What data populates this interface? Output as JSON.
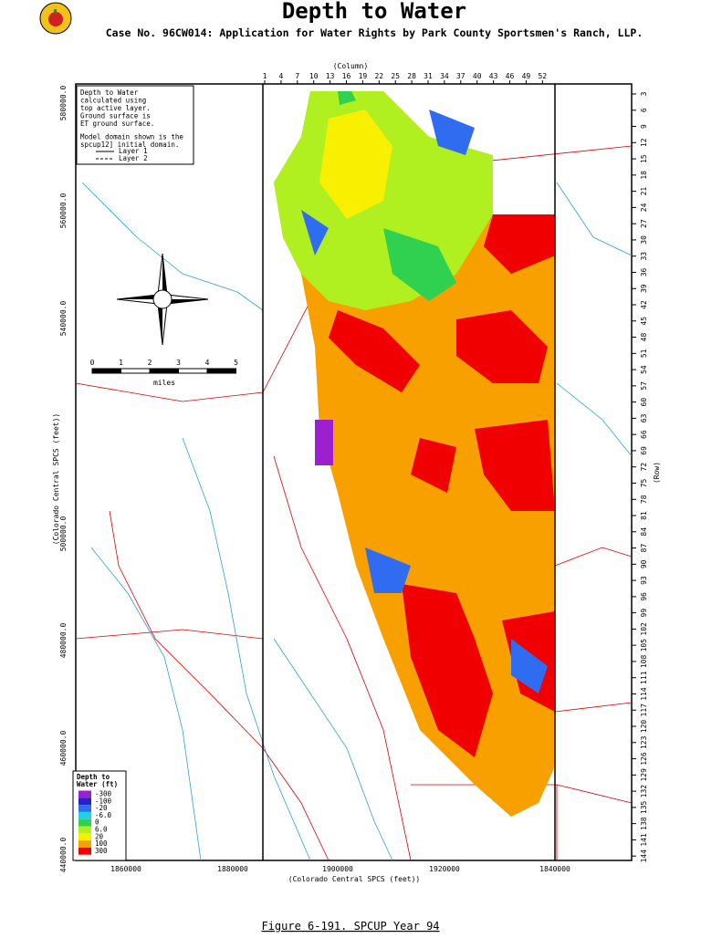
{
  "header": {
    "title": "Depth to Water",
    "subtitle": "Case No. 96CW014: Application for Water Rights by Park County Sportsmen's Ranch, LLP."
  },
  "top_axis": {
    "label": "(Column)",
    "ticks": [
      1,
      4,
      7,
      10,
      13,
      16,
      19,
      22,
      25,
      28,
      31,
      34,
      37,
      40,
      43,
      46,
      49,
      52
    ]
  },
  "right_axis": {
    "label": "(Row)",
    "ticks": [
      3,
      6,
      9,
      12,
      15,
      18,
      21,
      24,
      27,
      30,
      33,
      36,
      39,
      42,
      45,
      48,
      51,
      54,
      57,
      60,
      63,
      66,
      69,
      72,
      75,
      78,
      81,
      84,
      87,
      90,
      93,
      96,
      99,
      102,
      105,
      108,
      111,
      114,
      117,
      120,
      123,
      126,
      129,
      132,
      135,
      138,
      141,
      144
    ]
  },
  "left_axis": {
    "label": "(Colorado Central SPCS (feet))",
    "ticks": [
      "580000.0",
      "560000.0",
      "540000.0",
      "500000.0",
      "480000.0",
      "460000.0",
      "440000.0"
    ]
  },
  "bottom_axis": {
    "label": "(Colorado Central SPCS (feet))",
    "ticks": [
      "1860000",
      "1880000",
      "1900000",
      "1920000",
      "1840000"
    ]
  },
  "note": {
    "lines": [
      "Depth to Water",
      "calculated using",
      "top active layer.",
      "Ground surface is",
      "ET ground surface.",
      "Model domain shown is the",
      "spcup12] initial domain."
    ],
    "layers": [
      "Layer 1",
      "Layer 2"
    ]
  },
  "scale": {
    "ticks": [
      "0",
      "1",
      "2",
      "3",
      "4",
      "5"
    ],
    "unit": "miles"
  },
  "legend": {
    "title": [
      "Depth to",
      "Water (ft)"
    ],
    "entries": [
      {
        "label": "-300",
        "color": "#9c1fd0"
      },
      {
        "label": "-100",
        "color": "#2a20c8"
      },
      {
        "label": "-20",
        "color": "#2f6cf0"
      },
      {
        "label": "-6.0",
        "color": "#20d0e8"
      },
      {
        "label": "0",
        "color": "#30d050"
      },
      {
        "label": "6.0",
        "color": "#b0f020"
      },
      {
        "label": "20",
        "color": "#f8f000"
      },
      {
        "label": "100",
        "color": "#f8a000"
      },
      {
        "label": "300",
        "color": "#f00000"
      }
    ]
  },
  "caption": "Figure 6-191.  SPCUP Year 94"
}
